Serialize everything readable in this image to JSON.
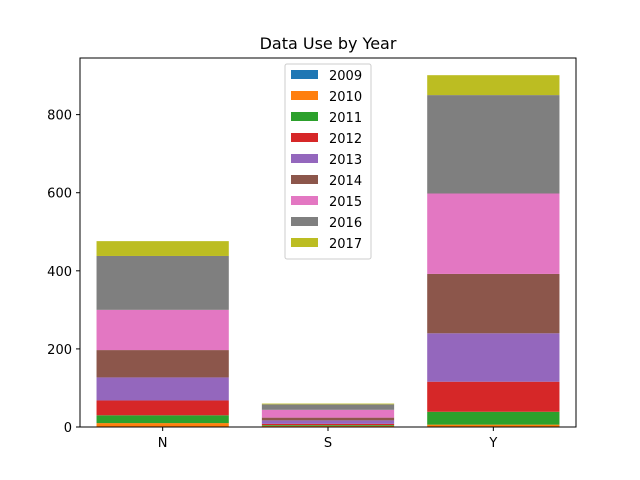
{
  "chart_data": {
    "type": "bar",
    "stacked": true,
    "title": "Data Use by Year",
    "xlabel": "",
    "ylabel": "",
    "categories": [
      "N",
      "S",
      "Y"
    ],
    "ylim": [
      0,
      945
    ],
    "yticks": [
      0,
      200,
      400,
      600,
      800
    ],
    "grid": false,
    "legend_position": "top-center",
    "series": [
      {
        "name": "2009",
        "color": "#1f77b4",
        "values": [
          0,
          0,
          0
        ]
      },
      {
        "name": "2010",
        "color": "#ff7f0e",
        "values": [
          10,
          3,
          6
        ]
      },
      {
        "name": "2011",
        "color": "#2ca02c",
        "values": [
          20,
          2,
          33
        ]
      },
      {
        "name": "2012",
        "color": "#d62728",
        "values": [
          38,
          3,
          77
        ]
      },
      {
        "name": "2013",
        "color": "#9467bd",
        "values": [
          59,
          9,
          124
        ]
      },
      {
        "name": "2014",
        "color": "#8c564b",
        "values": [
          70,
          7,
          152
        ]
      },
      {
        "name": "2015",
        "color": "#e377c2",
        "values": [
          103,
          20,
          206
        ]
      },
      {
        "name": "2016",
        "color": "#7f7f7f",
        "values": [
          138,
          14,
          252
        ]
      },
      {
        "name": "2017",
        "color": "#bcbd22",
        "values": [
          38,
          2,
          51
        ]
      }
    ]
  }
}
